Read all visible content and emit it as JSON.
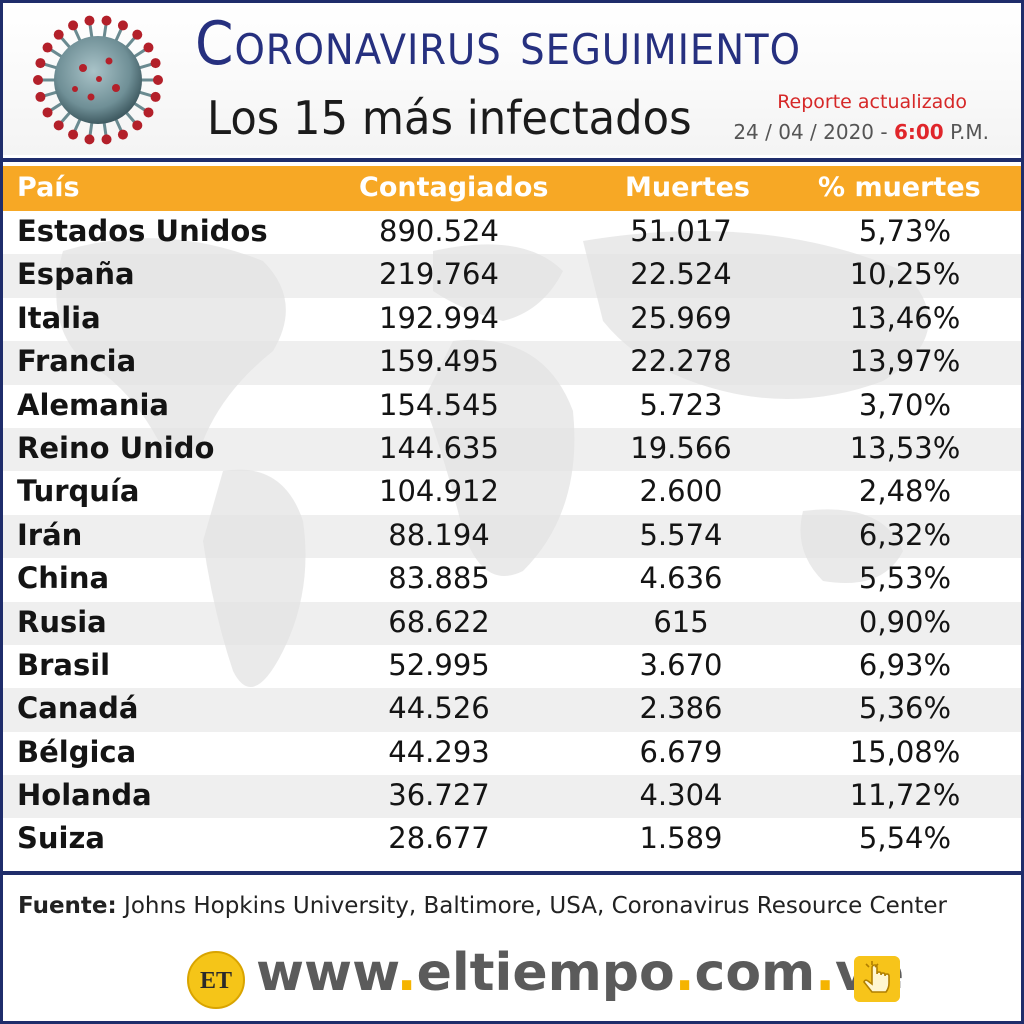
{
  "header": {
    "title": "Coronavirus seguimiento",
    "subtitle": "Los 15 más infectados",
    "report_label": "Reporte actualizado",
    "report_date": "24 / 04 / 2020 -",
    "report_time": "6:00",
    "report_ampm": "P.M."
  },
  "table": {
    "columns": [
      "País",
      "Contagiados",
      "Muertes",
      "% muertes"
    ],
    "rows": [
      {
        "country": "Estados Unidos",
        "cases": "890.524",
        "deaths": "51.017",
        "pct": "5,73%"
      },
      {
        "country": "España",
        "cases": "219.764",
        "deaths": "22.524",
        "pct": "10,25%"
      },
      {
        "country": "Italia",
        "cases": "192.994",
        "deaths": "25.969",
        "pct": "13,46%"
      },
      {
        "country": "Francia",
        "cases": "159.495",
        "deaths": "22.278",
        "pct": "13,97%"
      },
      {
        "country": "Alemania",
        "cases": "154.545",
        "deaths": "5.723",
        "pct": "3,70%"
      },
      {
        "country": "Reino Unido",
        "cases": "144.635",
        "deaths": "19.566",
        "pct": "13,53%"
      },
      {
        "country": "Turquía",
        "cases": "104.912",
        "deaths": "2.600",
        "pct": "2,48%"
      },
      {
        "country": "Irán",
        "cases": "88.194",
        "deaths": "5.574",
        "pct": "6,32%"
      },
      {
        "country": "China",
        "cases": "83.885",
        "deaths": "4.636",
        "pct": "5,53%"
      },
      {
        "country": "Rusia",
        "cases": "68.622",
        "deaths": "615",
        "pct": "0,90%"
      },
      {
        "country": "Brasil",
        "cases": "52.995",
        "deaths": "3.670",
        "pct": "6,93%"
      },
      {
        "country": "Canadá",
        "cases": "44.526",
        "deaths": "2.386",
        "pct": "5,36%"
      },
      {
        "country": "Bélgica",
        "cases": "44.293",
        "deaths": "6.679",
        "pct": "15,08%"
      },
      {
        "country": "Holanda",
        "cases": "36.727",
        "deaths": "4.304",
        "pct": "11,72%"
      },
      {
        "country": "Suiza",
        "cases": "28.677",
        "deaths": "1.589",
        "pct": "5,54%"
      }
    ]
  },
  "source": {
    "label": "Fuente:",
    "text": "Johns Hopkins University, Baltimore, USA, Coronavirus Resource Center"
  },
  "footer": {
    "logo_text": "ET",
    "url_parts": [
      "www",
      ".",
      "eltiempo",
      ".",
      "com",
      ".",
      "ve"
    ]
  },
  "icons": {
    "virus": "coronavirus-icon",
    "logo": "el-tiempo-logo",
    "hand": "hand-pointer-icon"
  },
  "colors": {
    "title_blue": "#26307f",
    "header_orange": "#f7a825",
    "accent_red": "#d62828",
    "url_gray": "#5b5b5b",
    "url_dot": "#f5b400"
  }
}
